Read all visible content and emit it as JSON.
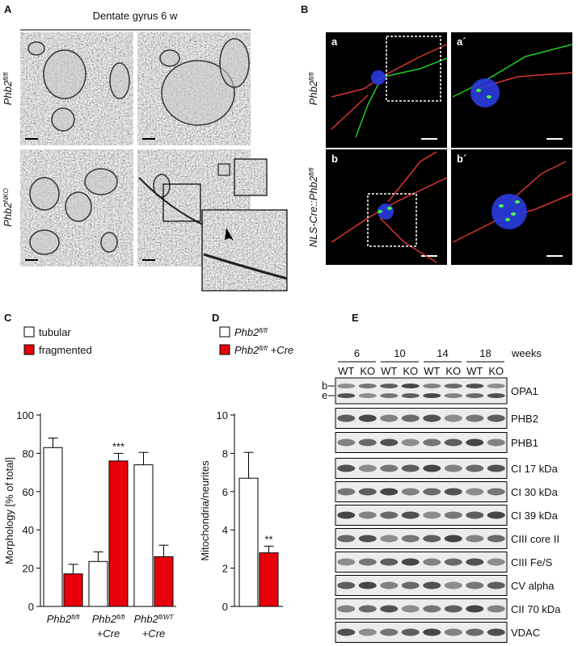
{
  "figure": {
    "panel_A": {
      "letter": "A",
      "title": "Dentate gyrus 6 w",
      "row_labels": [
        {
          "text": "Phb2",
          "sup": "fl/fl"
        },
        {
          "text": "Phb2",
          "sup": "NKO"
        }
      ]
    },
    "panel_B": {
      "letter": "B",
      "row_labels": [
        {
          "text": "Phb2",
          "sup": "fl/fl"
        },
        {
          "text": "NLS-Cre::Phb2",
          "sup": "fl/fl"
        }
      ],
      "image_labels": [
        "a",
        "a´",
        "b",
        "b´"
      ]
    },
    "panel_E": {
      "letter": "E",
      "timepoints": [
        "6",
        "10",
        "14",
        "18"
      ],
      "time_unit": "weeks",
      "genotypes": [
        "WT",
        "KO"
      ],
      "opa1_isoforms": [
        "b",
        "e"
      ],
      "proteins": [
        "OPA1",
        "PHB2",
        "PHB1",
        "CI 17 kDa",
        "CI 30 kDa",
        "CI 39 kDa",
        "CIII core II",
        "CIII Fe/S",
        "CV alpha",
        "CII 70 kDa",
        "VDAC"
      ]
    }
  },
  "chart_data": [
    {
      "panel_label": "C",
      "type": "bar",
      "y_label": "Morphology [% of total]",
      "categories": [
        {
          "text": "Phb2",
          "sup": "fl/fl"
        },
        {
          "text": "Phb2",
          "sup": "fl/fl",
          "line2": "+Cre"
        },
        {
          "text": "Phb2",
          "sup": "fl/WT",
          "line2": "+Cre"
        }
      ],
      "series": [
        {
          "name": "tubular",
          "color": "#ffffff",
          "values": [
            83,
            23.5,
            74
          ],
          "errors": [
            5,
            5,
            6.5
          ]
        },
        {
          "name": "fragmented",
          "color": "#e8000b",
          "values": [
            17,
            76,
            26
          ],
          "errors": [
            5,
            4,
            6
          ],
          "annotations": [
            null,
            "***",
            null
          ]
        }
      ],
      "ylim": [
        0,
        100
      ],
      "yticks": [
        0,
        20,
        40,
        60,
        80,
        100
      ]
    },
    {
      "panel_label": "D",
      "type": "bar",
      "y_label": "Mitochondria/neurites",
      "series": [
        {
          "name": "Phb2",
          "name_sup": "fl/fl",
          "color": "#ffffff",
          "values": [
            6.7
          ],
          "errors": [
            1.35
          ]
        },
        {
          "name": "Phb2",
          "name_sup": "fl/fl",
          "name_suffix": "+Cre",
          "color": "#e8000b",
          "values": [
            2.8
          ],
          "errors": [
            0.35
          ],
          "annotations": [
            "**"
          ]
        }
      ],
      "ylim": [
        0,
        10
      ],
      "yticks": [
        0,
        2,
        4,
        6,
        8,
        10
      ]
    }
  ]
}
